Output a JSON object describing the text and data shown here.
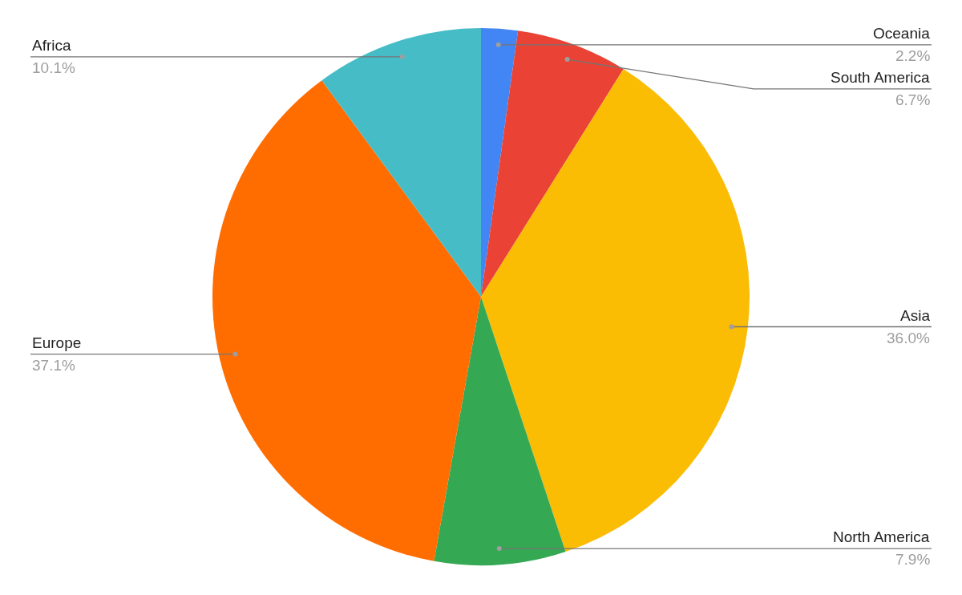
{
  "chart_data": {
    "type": "pie",
    "categories": [
      "Oceania",
      "South America",
      "Asia",
      "North America",
      "Europe",
      "Africa"
    ],
    "values": [
      2.2,
      6.7,
      36.0,
      7.9,
      37.1,
      10.1
    ],
    "value_labels": [
      "2.2%",
      "6.7%",
      "36.0%",
      "7.9%",
      "37.1%",
      "10.1%"
    ],
    "colors": [
      "#4285f4",
      "#ea4335",
      "#fbbc04",
      "#34a853",
      "#ff6d01",
      "#46bdc6"
    ]
  }
}
